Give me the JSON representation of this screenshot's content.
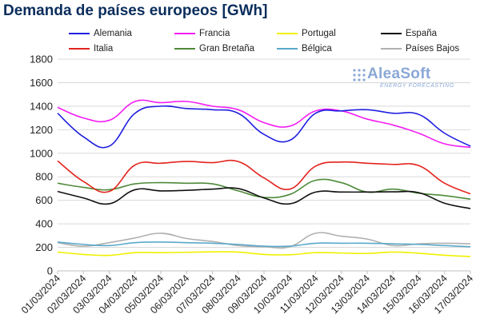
{
  "title": "Demanda de países europeos [GWh]",
  "logo": {
    "name": "AleaSoft",
    "tagline": "ENERGY FORECASTING"
  },
  "chart_data": {
    "type": "line",
    "title": "Demanda de países europeos [GWh]",
    "xlabel": "",
    "ylabel": "",
    "ylim": [
      0,
      1800
    ],
    "yticks": [
      0,
      200,
      400,
      600,
      800,
      1000,
      1200,
      1400,
      1600,
      1800
    ],
    "grid": true,
    "legend_position": "top",
    "x": [
      "01/03/2024",
      "02/03/2024",
      "03/03/2024",
      "04/03/2024",
      "05/03/2024",
      "06/03/2024",
      "07/03/2024",
      "08/03/2024",
      "09/03/2024",
      "10/03/2024",
      "11/03/2024",
      "12/03/2024",
      "13/03/2024",
      "14/03/2024",
      "15/03/2024",
      "16/03/2024",
      "17/03/2024"
    ],
    "series": [
      {
        "name": "Alemania",
        "color": "#1f1fe0",
        "values": [
          1340,
          1140,
          1060,
          1340,
          1400,
          1380,
          1370,
          1340,
          1160,
          1110,
          1340,
          1360,
          1370,
          1340,
          1330,
          1170,
          1060
        ]
      },
      {
        "name": "Francia",
        "color": "#f21ef2",
        "values": [
          1390,
          1300,
          1280,
          1440,
          1430,
          1440,
          1400,
          1370,
          1260,
          1230,
          1360,
          1360,
          1290,
          1240,
          1170,
          1080,
          1050
        ]
      },
      {
        "name": "Portugal",
        "color": "#f0f000",
        "values": [
          160,
          140,
          132,
          155,
          155,
          158,
          162,
          160,
          140,
          137,
          155,
          152,
          148,
          160,
          150,
          133,
          122
        ]
      },
      {
        "name": "España",
        "color": "#111111",
        "values": [
          675,
          620,
          570,
          690,
          680,
          685,
          695,
          700,
          620,
          570,
          670,
          670,
          670,
          672,
          665,
          575,
          530
        ]
      },
      {
        "name": "Italia",
        "color": "#e3231d",
        "values": [
          935,
          760,
          675,
          900,
          915,
          930,
          920,
          930,
          790,
          695,
          890,
          925,
          915,
          905,
          895,
          745,
          655
        ]
      },
      {
        "name": "Gran Bretaña",
        "color": "#4e8a3a",
        "values": [
          745,
          710,
          690,
          740,
          750,
          745,
          740,
          680,
          625,
          650,
          770,
          750,
          670,
          695,
          660,
          640,
          610
        ]
      },
      {
        "name": "Bélgica",
        "color": "#5aa9c9",
        "values": [
          245,
          225,
          215,
          240,
          245,
          240,
          235,
          225,
          210,
          210,
          235,
          235,
          235,
          230,
          225,
          215,
          205
        ]
      },
      {
        "name": "Países Bajos",
        "color": "#b0b0b0",
        "values": [
          240,
          210,
          240,
          280,
          320,
          275,
          250,
          215,
          205,
          205,
          320,
          295,
          270,
          215,
          230,
          235,
          230
        ]
      }
    ]
  }
}
